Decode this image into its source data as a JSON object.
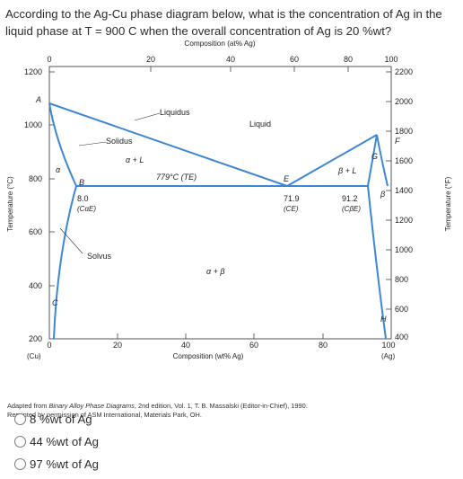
{
  "question": {
    "text": "According to the Ag-Cu phase diagram below, what is the concentration of Ag in the liquid phase at T = 900 C when the overall concentration of Ag is 20 %wt?"
  },
  "figure": {
    "top_axis_title": "Composition (at% Ag)",
    "top_ticks": [
      "0",
      "20",
      "40",
      "60",
      "80",
      "100"
    ],
    "bottom_axis_title": "Composition (wt% Ag)",
    "bottom_ticks": [
      "0",
      "20",
      "40",
      "60",
      "80",
      "100"
    ],
    "left_axis_title": "Temperature (°C)",
    "left_ticks": [
      "1200",
      "1000",
      "800",
      "600",
      "400",
      "200"
    ],
    "right_axis_title": "Temperature (°F)",
    "right_ticks": [
      "2200",
      "2000",
      "1800",
      "1600",
      "1400",
      "1200",
      "1000",
      "800",
      "600",
      "400"
    ],
    "right_extra_label": "F",
    "left_corner_label": "(Cu)",
    "right_corner_label": "(Ag)",
    "line_color": "#3b87d4",
    "labels": {
      "A": "A",
      "B": "B",
      "C": "C",
      "E": "E",
      "G": "G",
      "H": "H",
      "liquidus": "Liquidus",
      "liquid": "Liquid",
      "solidus": "Solidus",
      "alpha_L": "α + L",
      "beta_L": "β + L",
      "eutectic_temp": "779°C (TE)",
      "alpha": "α",
      "beta": "β",
      "alpha_beta": "α + β",
      "solvus": "Solvus",
      "ca_value": "8.0",
      "ca_label": "(CαE)",
      "ce_value": "71.9",
      "ce_label": "(CE)",
      "cb_value": "91.2",
      "cb_label": "(CβE)"
    }
  },
  "credit": {
    "prefix": "Adapted from ",
    "title": "Binary Alloy Phase Diagrams",
    "suffix": ", 2nd edition, Vol. 1, T. B. Massalski (Editor-in-Chief), 1990.",
    "line2": "Reprinted by permission of ASM International, Materials Park, OH."
  },
  "options": [
    {
      "label": "8 %wt of Ag"
    },
    {
      "label": "44 %wt of Ag"
    },
    {
      "label": "97 %wt of Ag"
    }
  ]
}
